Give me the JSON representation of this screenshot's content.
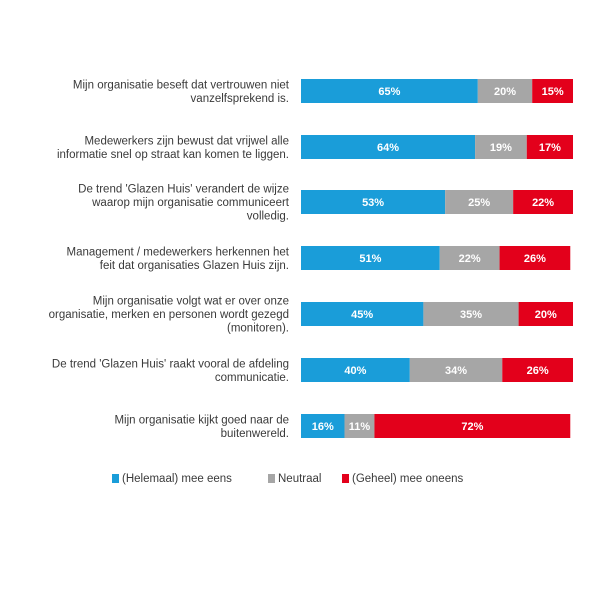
{
  "chart_data": {
    "type": "bar",
    "orientation": "horizontal",
    "stacked": true,
    "percent_stacked": true,
    "categories": [
      [
        "Mijn organisatie beseft dat vertrouwen niet",
        "vanzelfsprekend is."
      ],
      [
        "Medewerkers zijn bewust dat vrijwel alle",
        "informatie snel op straat kan komen te liggen."
      ],
      [
        "De trend 'Glazen Huis' verandert de wijze",
        "waarop mijn organisatie communiceert",
        "volledig."
      ],
      [
        "Management / medewerkers herkennen het",
        "feit dat organisaties Glazen Huis zijn."
      ],
      [
        "Mijn organisatie volgt wat er over onze",
        "organisatie, merken en personen wordt gezegd",
        "(monitoren)."
      ],
      [
        "De trend 'Glazen Huis' raakt vooral de afdeling",
        "communicatie."
      ],
      [
        "Mijn organisatie kijkt goed naar de",
        "buitenwereld."
      ]
    ],
    "series": [
      {
        "name": "(Helemaal) mee eens",
        "color": "#1a9dd9",
        "values": [
          65,
          64,
          53,
          51,
          45,
          40,
          16
        ]
      },
      {
        "name": "Neutraal",
        "color": "#a6a6a6",
        "values": [
          20,
          19,
          25,
          22,
          35,
          34,
          11
        ]
      },
      {
        "name": "(Geheel) mee oneens",
        "color": "#e3001b",
        "values": [
          15,
          17,
          22,
          26,
          20,
          26,
          72
        ]
      }
    ],
    "value_suffix": "%",
    "data_labels": true,
    "legend_position": "bottom",
    "grid": false,
    "xlim": [
      0,
      100
    ]
  }
}
